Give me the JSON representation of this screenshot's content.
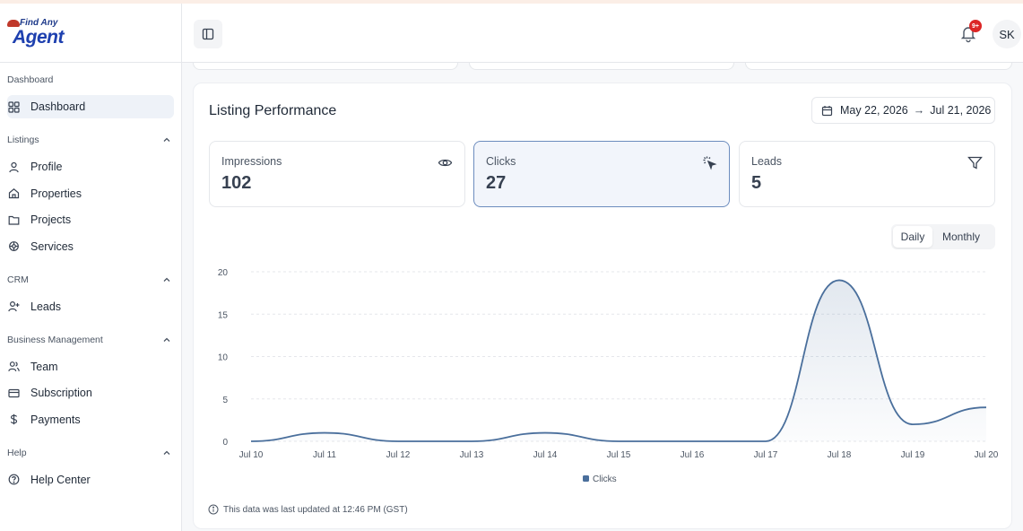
{
  "app": {
    "logo_line1": "Find Any",
    "logo_line2": "Agent"
  },
  "sidebar": {
    "sections": [
      {
        "title": "Dashboard",
        "items": [
          {
            "label": "Dashboard",
            "icon": "grid-icon",
            "active": true
          }
        ]
      },
      {
        "title": "Listings",
        "items": [
          {
            "label": "Profile",
            "icon": "user-icon"
          },
          {
            "label": "Properties",
            "icon": "home-icon"
          },
          {
            "label": "Projects",
            "icon": "folder-icon"
          },
          {
            "label": "Services",
            "icon": "settings-icon"
          }
        ]
      },
      {
        "title": "CRM",
        "items": [
          {
            "label": "Leads",
            "icon": "user-plus-icon"
          }
        ]
      },
      {
        "title": "Business Management",
        "items": [
          {
            "label": "Team",
            "icon": "users-icon"
          },
          {
            "label": "Subscription",
            "icon": "credit-card-icon"
          },
          {
            "label": "Payments",
            "icon": "dollar-icon"
          }
        ]
      },
      {
        "title": "Help",
        "items": [
          {
            "label": "Help Center",
            "icon": "help-circle-icon"
          }
        ]
      }
    ]
  },
  "header": {
    "notification_badge": "9+",
    "avatar_initials": "SK"
  },
  "performance": {
    "title": "Listing Performance",
    "date_from": "May 22, 2026",
    "date_arrow": "→",
    "date_to": "Jul 21, 2026",
    "metrics": [
      {
        "label": "Impressions",
        "value": "102",
        "icon": "eye-icon"
      },
      {
        "label": "Clicks",
        "value": "27",
        "icon": "cursor-click-icon",
        "selected": true
      },
      {
        "label": "Leads",
        "value": "5",
        "icon": "filter-icon"
      }
    ],
    "period_options": [
      "Daily",
      "Monthly"
    ],
    "period_selected": "Daily",
    "footnote": "This data was last updated at 12:46 PM (GST)"
  },
  "colors": {
    "accent": "#4a6f9c",
    "active_bg": "#eef2f8",
    "badge": "#dc2626"
  },
  "chart_data": {
    "type": "area",
    "x": [
      "Jul 10",
      "Jul 11",
      "Jul 12",
      "Jul 13",
      "Jul 14",
      "Jul 15",
      "Jul 16",
      "Jul 17",
      "Jul 18",
      "Jul 19",
      "Jul 20"
    ],
    "series": [
      {
        "name": "Clicks",
        "values": [
          0,
          1,
          0,
          0,
          1,
          0,
          0,
          0,
          19,
          2,
          4
        ]
      }
    ],
    "yticks": [
      "0",
      "5",
      "10",
      "15",
      "20"
    ],
    "ylim": [
      0,
      20
    ],
    "grid": true,
    "legend": "bottom-center",
    "color": "#4a6f9c"
  }
}
